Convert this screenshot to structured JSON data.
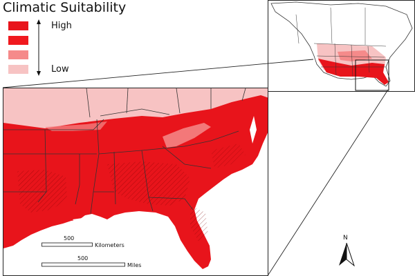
{
  "legend": {
    "title": "Climatic Suitability",
    "high_label": "High",
    "low_label": "Low",
    "classes": [
      {
        "level": "highest",
        "color": "#e8141b"
      },
      {
        "level": "high",
        "color": "#f0191e"
      },
      {
        "level": "low",
        "color": "#f58a8a"
      },
      {
        "level": "lowest",
        "color": "#f7c3c3"
      }
    ]
  },
  "scale_bars": {
    "km": {
      "value": "500",
      "unit": "Kilometers"
    },
    "miles": {
      "value": "500",
      "unit": "Miles"
    }
  },
  "north_arrow": {
    "label": "N"
  },
  "colors": {
    "high": "#e8141b",
    "low": "#f7c3c3",
    "mid": "#f58a8a",
    "border": "#333333"
  }
}
